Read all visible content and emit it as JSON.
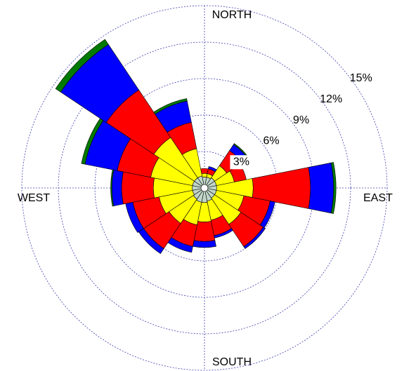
{
  "chart_data": {
    "type": "windrose",
    "compass_labels": [
      "NORTH",
      "EAST",
      "SOUTH",
      "WEST"
    ],
    "categories": [
      null,
      null,
      null,
      null,
      null,
      null,
      null,
      null,
      null,
      null,
      null,
      null,
      null,
      null,
      null,
      null
    ],
    "series": [
      {
        "color": "#c0d6c8",
        "values": [
          0.9,
          0.9,
          1.0,
          1.0,
          1.0,
          1.0,
          1.0,
          1.1,
          1.2,
          1.2,
          1.1,
          1.0,
          1.0,
          1.0,
          1.0,
          1.0
        ]
      },
      {
        "color": "#ffff00",
        "values": [
          0.3,
          0.3,
          1.2,
          1.5,
          3.0,
          2.3,
          2.6,
          1.6,
          1.6,
          1.9,
          2.4,
          2.8,
          3.2,
          3.5,
          4.0,
          2.3
        ]
      },
      {
        "color": "#ff0000",
        "values": [
          0.4,
          0.4,
          1.5,
          1.0,
          4.7,
          2.2,
          2.2,
          1.3,
          1.6,
          1.8,
          2.5,
          2.2,
          2.6,
          2.8,
          4.7,
          2.2
        ]
      },
      {
        "color": "#0000ff",
        "values": [
          0,
          0.2,
          0.6,
          0,
          1.9,
          0.4,
          0.2,
          0.2,
          0.5,
          0.5,
          0.5,
          0.6,
          0.8,
          2.7,
          4.5,
          1.8
        ]
      },
      {
        "color": "#007a00",
        "values": [
          0,
          0,
          0.1,
          0,
          0.2,
          0,
          0,
          0,
          0,
          0,
          0,
          0,
          0.1,
          0.3,
          0.5,
          0.2
        ]
      }
    ],
    "rlim": [
      0,
      15
    ],
    "rticks": [
      {
        "value": 3,
        "label": "3%"
      },
      {
        "value": 6,
        "label": "6%"
      },
      {
        "value": 9,
        "label": "9%"
      },
      {
        "value": 12,
        "label": "12%"
      },
      {
        "value": 15,
        "label": "15%"
      }
    ],
    "grid": true
  }
}
